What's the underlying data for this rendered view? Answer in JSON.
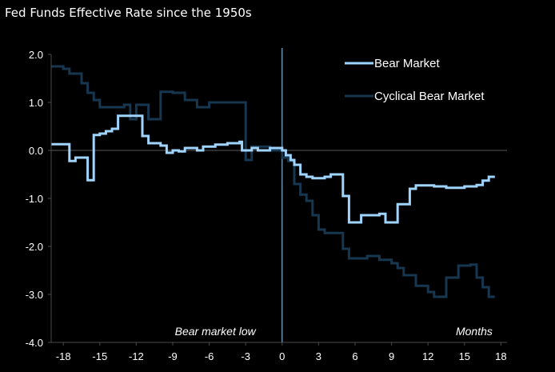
{
  "chart_data": {
    "type": "line",
    "title": "Fed Funds Effective Rate since the 1950s",
    "xlabel": "Months",
    "ylabel": "",
    "xlim": [
      -19,
      18.5
    ],
    "ylim": [
      -4.0,
      2.0
    ],
    "xticks": [
      -18,
      -15,
      -12,
      -9,
      -6,
      -3,
      0,
      3,
      6,
      9,
      12,
      15,
      18
    ],
    "xtick_labels": [
      "-18",
      "-15",
      "-12",
      "-9",
      "-6",
      "-3",
      "0",
      "3",
      "6",
      "9",
      "12",
      "15",
      "18"
    ],
    "yticks": [
      2.0,
      1.0,
      0.0,
      -1.0,
      -2.0,
      -3.0,
      -4.0
    ],
    "ytick_labels": [
      "2.0",
      "1.0",
      "0.0",
      "-1.0",
      "-2.0",
      "-3.0",
      "-4.0"
    ],
    "legend_position": "top-right",
    "annotations": [
      {
        "text": "Bear market low",
        "x": -5.5,
        "y": -3.85
      },
      {
        "text": "Months",
        "x": 15.8,
        "y": -3.85
      }
    ],
    "vline_x": 0,
    "hline_y": 0,
    "series": [
      {
        "name": "Bear Market",
        "color": "#9fd4ff",
        "style": "step",
        "points": [
          [
            -19,
            0.13
          ],
          [
            -18,
            0.13
          ],
          [
            -17.5,
            -0.22
          ],
          [
            -17,
            -0.15
          ],
          [
            -16.5,
            -0.15
          ],
          [
            -16,
            -0.62
          ],
          [
            -15.5,
            0.32
          ],
          [
            -15,
            0.35
          ],
          [
            -14.5,
            0.4
          ],
          [
            -14,
            0.45
          ],
          [
            -13.5,
            0.72
          ],
          [
            -12,
            0.72
          ],
          [
            -11.5,
            0.3
          ],
          [
            -11,
            0.15
          ],
          [
            -10,
            0.1
          ],
          [
            -9.5,
            -0.05
          ],
          [
            -9,
            0.0
          ],
          [
            -8.5,
            -0.02
          ],
          [
            -8,
            0.05
          ],
          [
            -7,
            0.0
          ],
          [
            -6.5,
            0.08
          ],
          [
            -5.5,
            0.12
          ],
          [
            -4.5,
            0.15
          ],
          [
            -3.5,
            0.18
          ],
          [
            -3.3,
            0.0
          ],
          [
            -2.5,
            0.05
          ],
          [
            -2,
            0.0
          ],
          [
            -1,
            0.05
          ],
          [
            0,
            0.0
          ],
          [
            0.3,
            -0.1
          ],
          [
            0.7,
            -0.2
          ],
          [
            1,
            -0.3
          ],
          [
            1.5,
            -0.5
          ],
          [
            2,
            -0.55
          ],
          [
            2.5,
            -0.58
          ],
          [
            3.5,
            -0.55
          ],
          [
            4,
            -0.5
          ],
          [
            5,
            -0.95
          ],
          [
            5.5,
            -1.5
          ],
          [
            6.5,
            -1.35
          ],
          [
            8,
            -1.32
          ],
          [
            8.5,
            -1.5
          ],
          [
            9,
            -1.5
          ],
          [
            9.5,
            -1.12
          ],
          [
            10.5,
            -0.8
          ],
          [
            11,
            -0.73
          ],
          [
            12.5,
            -0.75
          ],
          [
            13.5,
            -0.78
          ],
          [
            15,
            -0.75
          ],
          [
            16,
            -0.72
          ],
          [
            16.5,
            -0.63
          ],
          [
            17,
            -0.55
          ],
          [
            17.5,
            -0.55
          ]
        ]
      },
      {
        "name": "Cyclical Bear Market",
        "color": "#17364f",
        "style": "step",
        "points": [
          [
            -19,
            1.75
          ],
          [
            -18,
            1.7
          ],
          [
            -17.5,
            1.6
          ],
          [
            -16.5,
            1.4
          ],
          [
            -16,
            1.2
          ],
          [
            -15.5,
            1.05
          ],
          [
            -15,
            0.9
          ],
          [
            -14,
            0.9
          ],
          [
            -13,
            0.95
          ],
          [
            -12.5,
            0.65
          ],
          [
            -12,
            0.95
          ],
          [
            -11,
            0.65
          ],
          [
            -10,
            1.22
          ],
          [
            -9,
            1.2
          ],
          [
            -8,
            1.05
          ],
          [
            -7,
            0.9
          ],
          [
            -6,
            1.0
          ],
          [
            -4.5,
            1.0
          ],
          [
            -3.5,
            1.0
          ],
          [
            -3,
            -0.2
          ],
          [
            -2.5,
            0.08
          ],
          [
            -1.5,
            0.08
          ],
          [
            -1,
            0.0
          ],
          [
            0,
            -0.15
          ],
          [
            0.5,
            -0.22
          ],
          [
            1,
            -0.7
          ],
          [
            1.5,
            -0.92
          ],
          [
            2,
            -1.05
          ],
          [
            2.5,
            -1.35
          ],
          [
            3,
            -1.65
          ],
          [
            3.5,
            -1.72
          ],
          [
            4,
            -1.72
          ],
          [
            5,
            -2.05
          ],
          [
            5.5,
            -2.25
          ],
          [
            6,
            -2.25
          ],
          [
            7,
            -2.2
          ],
          [
            8,
            -2.28
          ],
          [
            9,
            -2.35
          ],
          [
            9.5,
            -2.45
          ],
          [
            10,
            -2.6
          ],
          [
            11,
            -2.82
          ],
          [
            12,
            -2.95
          ],
          [
            12.5,
            -3.05
          ],
          [
            13.5,
            -2.65
          ],
          [
            14.5,
            -2.4
          ],
          [
            15.5,
            -2.38
          ],
          [
            16,
            -2.65
          ],
          [
            16.5,
            -2.85
          ],
          [
            17,
            -3.05
          ],
          [
            17.5,
            -3.05
          ]
        ]
      }
    ]
  }
}
